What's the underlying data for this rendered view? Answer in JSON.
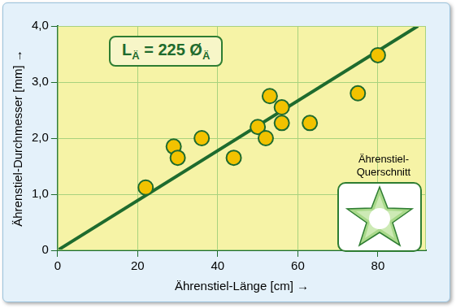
{
  "chart_data": {
    "type": "scatter",
    "x_label": "Ährenstiel-Länge [cm] →",
    "y_label": "Ährenstiel-Durchmesser [mm] →",
    "xlim": [
      0,
      92
    ],
    "xticks": [
      0,
      20,
      40,
      60,
      80
    ],
    "ylim": [
      0,
      4
    ],
    "yticks": [
      0,
      {
        "value": 1,
        "label": "1,0"
      },
      {
        "value": 2,
        "label": "2,0"
      },
      {
        "value": 3,
        "label": "3,0"
      },
      {
        "value": 4,
        "label": "4,0"
      }
    ],
    "grid": true,
    "series": [
      {
        "type": "scatter",
        "color": "#f2c200",
        "marker": "circle",
        "x": [
          22,
          29,
          30,
          36,
          44,
          50,
          52,
          53,
          56,
          56,
          63,
          75,
          80
        ],
        "values": [
          1.12,
          1.85,
          1.65,
          2.0,
          1.65,
          2.2,
          2.0,
          2.75,
          2.55,
          2.27,
          2.27,
          2.8,
          3.48
        ]
      },
      {
        "type": "line",
        "color": "#1e6b2e",
        "line_style": "solid",
        "x": [
          0,
          90
        ],
        "values": [
          0,
          4
        ]
      }
    ],
    "annotations": [
      {
        "parts": [
          {
            "text": "L"
          },
          {
            "text": "Ä",
            "sub": true
          },
          {
            "text": " = 225 Ø"
          },
          {
            "text": "Ä",
            "sub": true
          }
        ]
      }
    ],
    "inset": {
      "lines": [
        "Ährenstiel-",
        "Querschnitt"
      ]
    }
  }
}
